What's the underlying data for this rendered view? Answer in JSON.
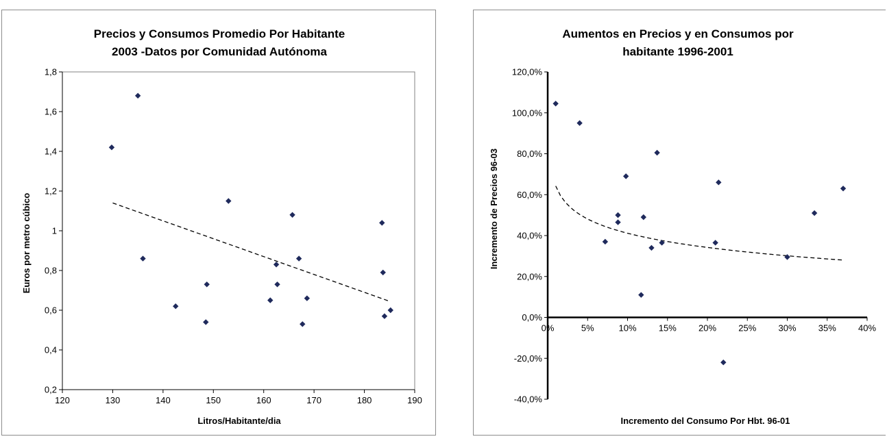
{
  "chart_data": [
    {
      "type": "scatter",
      "title_lines": [
        "Precios y Consumos Promedio Por Habitante",
        "2003 -Datos por Comunidad Autónoma"
      ],
      "xlabel": "Litros/Habitante/dia",
      "ylabel": "Euros por metro cúbico",
      "xlim": [
        120,
        190
      ],
      "ylim": [
        0.2,
        1.8
      ],
      "x_ticks": [
        120,
        130,
        140,
        150,
        160,
        170,
        180,
        190
      ],
      "y_ticks": [
        0.2,
        0.4,
        0.6,
        0.8,
        1.0,
        1.2,
        1.4,
        1.6,
        1.8
      ],
      "x_tick_labels": [
        "120",
        "130",
        "140",
        "150",
        "160",
        "170",
        "180",
        "190"
      ],
      "y_tick_labels": [
        "0,2",
        "0,4",
        "0,6",
        "0,8",
        "1",
        "1,2",
        "1,4",
        "1,6",
        "1,8"
      ],
      "marker_color": "#1f2a5c",
      "points": [
        [
          129.8,
          1.42
        ],
        [
          135.0,
          1.68
        ],
        [
          136.0,
          0.86
        ],
        [
          142.5,
          0.62
        ],
        [
          148.5,
          0.54
        ],
        [
          148.7,
          0.73
        ],
        [
          153.0,
          1.15
        ],
        [
          161.3,
          0.65
        ],
        [
          162.5,
          0.83
        ],
        [
          162.7,
          0.73
        ],
        [
          165.7,
          1.08
        ],
        [
          167.0,
          0.86
        ],
        [
          167.7,
          0.53
        ],
        [
          168.6,
          0.66
        ],
        [
          183.5,
          1.04
        ],
        [
          183.7,
          0.79
        ],
        [
          184.0,
          0.57
        ],
        [
          185.2,
          0.6
        ]
      ],
      "trendline": {
        "style": "dashed",
        "x_range": [
          130,
          185
        ],
        "endpoints": [
          1.14,
          0.645
        ]
      },
      "grid": false,
      "legend": "none"
    },
    {
      "type": "scatter",
      "title_lines": [
        "Aumentos en Precios y en Consumos por",
        "habitante 1996-2001"
      ],
      "xlabel": "Incremento del Consumo Por Hbt. 96-01",
      "ylabel": "Incremento de Precios 96-03",
      "xlim": [
        0,
        0.4
      ],
      "ylim": [
        -0.4,
        1.2
      ],
      "x_ticks": [
        0,
        0.05,
        0.1,
        0.15,
        0.2,
        0.25,
        0.3,
        0.35,
        0.4
      ],
      "y_ticks": [
        -0.4,
        -0.2,
        0.0,
        0.2,
        0.4,
        0.6,
        0.8,
        1.0,
        1.2
      ],
      "x_tick_labels": [
        "0%",
        "5%",
        "10%",
        "15%",
        "20%",
        "25%",
        "30%",
        "35%",
        "40%"
      ],
      "y_tick_labels": [
        "-40,0%",
        "-20,0%",
        "0,0%",
        "20,0%",
        "40,0%",
        "60,0%",
        "80,0%",
        "100,0%",
        "120,0%"
      ],
      "marker_color": "#1f2a5c",
      "points": [
        [
          0.01,
          1.045
        ],
        [
          0.04,
          0.95
        ],
        [
          0.072,
          0.37
        ],
        [
          0.088,
          0.5
        ],
        [
          0.088,
          0.465
        ],
        [
          0.098,
          0.69
        ],
        [
          0.117,
          0.11
        ],
        [
          0.12,
          0.49
        ],
        [
          0.13,
          0.34
        ],
        [
          0.137,
          0.805
        ],
        [
          0.143,
          0.365
        ],
        [
          0.21,
          0.365
        ],
        [
          0.214,
          0.66
        ],
        [
          0.22,
          -0.22
        ],
        [
          0.3,
          0.295
        ],
        [
          0.334,
          0.51
        ],
        [
          0.37,
          0.63
        ]
      ],
      "trendline": {
        "style": "dashed",
        "model": "logarithmic",
        "x_range": [
          0.01,
          0.37
        ],
        "a": 0.1805,
        "b": -0.1003
      },
      "grid": false,
      "legend": "none"
    }
  ]
}
